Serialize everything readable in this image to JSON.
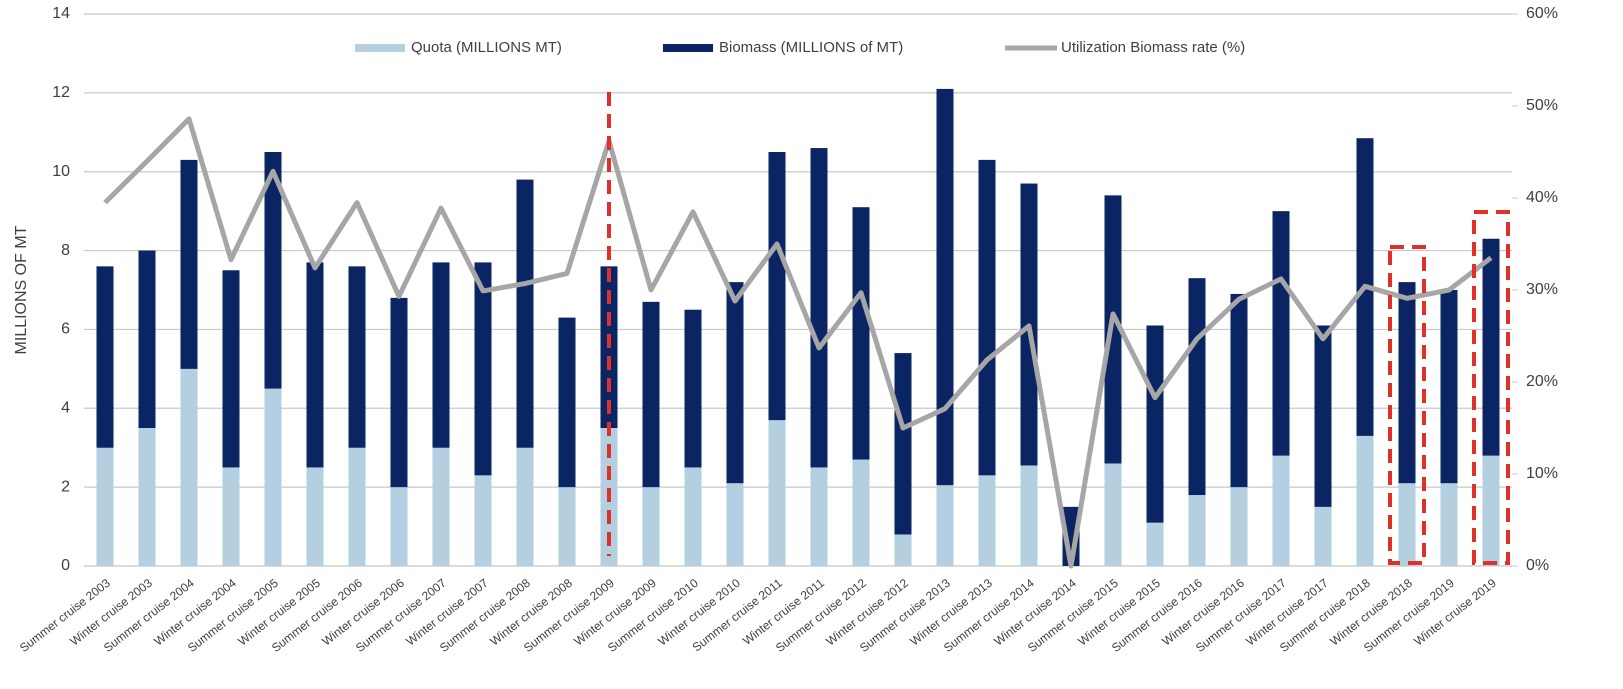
{
  "chart_data": {
    "type": "bar",
    "y_label": "MILLIONS OF MT",
    "categories": [
      "Summer cruise 2003",
      "Winter cruise 2003",
      "Summer cruise 2004",
      "Winter cruise 2004",
      "Summer cruise 2005",
      "Winter cruise 2005",
      "Summer cruise 2006",
      "Winter cruise 2006",
      "Summer cruise 2007",
      "Winter cruise 2007",
      "Summer cruise 2008",
      "Winter cruise 2008",
      "Summer cruise 2009",
      "Winter cruise 2009",
      "Summer cruise 2010",
      "Winter cruise 2010",
      "Summer cruise 2011",
      "Winter cruise 2011",
      "Summer cruise 2012",
      "Winter cruise 2012",
      "Summer cruise 2013",
      "Winter cruise 2013",
      "Summer cruise 2014",
      "Winter cruise 2014",
      "Summer cruise 2015",
      "Winter cruise 2015",
      "Summer cruise 2016",
      "Winter cruise 2016",
      "Summer cruise 2017",
      "Winter cruise 2017",
      "Summer cruise 2018",
      "Winter cruise 2018",
      "Summer cruise 2019",
      "Winter cruise 2019"
    ],
    "series": [
      {
        "name": "Quota (MILLIONS MT)",
        "color": "#b4cfe0",
        "values": [
          3,
          3.5,
          5,
          2.5,
          4.5,
          2.5,
          3,
          2,
          3,
          2.3,
          3,
          2,
          3.5,
          2,
          2.5,
          2.1,
          3.7,
          2.5,
          2.7,
          0.8,
          2.05,
          2.3,
          2.55,
          0,
          2.6,
          1.1,
          1.8,
          2,
          2.8,
          1.5,
          3.3,
          2.1,
          2.1,
          2.8
        ]
      },
      {
        "name": "Biomass (MILLIONS of MT)",
        "color": "#0b2463",
        "values": [
          7.6,
          8.0,
          10.3,
          7.5,
          10.5,
          7.7,
          7.6,
          6.8,
          7.7,
          7.7,
          9.8,
          6.3,
          7.6,
          6.7,
          6.5,
          7.2,
          10.5,
          10.6,
          9.1,
          5.4,
          12.1,
          10.3,
          9.7,
          1.5,
          9.4,
          6.1,
          7.3,
          6.9,
          9.0,
          6.1,
          10.85,
          7.2,
          7.0,
          8.3
        ]
      },
      {
        "name": "Utilization Biomass rate (%)",
        "color": "#a6a6a6",
        "type": "line",
        "axis": "y2",
        "values": [
          39.5,
          44,
          48.6,
          33.3,
          42.9,
          32.4,
          39.5,
          29.3,
          38.9,
          29.9,
          30.7,
          31.8,
          46.2,
          30,
          38.5,
          28.8,
          35,
          23.7,
          29.7,
          15,
          17.1,
          22.4,
          26.1,
          0,
          27.4,
          18.3,
          24.7,
          29,
          31.2,
          24.7,
          30.4,
          29.1,
          30,
          33.5
        ]
      }
    ],
    "ylim": [
      0,
      14
    ],
    "yticks": [
      0,
      2,
      4,
      6,
      8,
      10,
      12,
      14
    ],
    "y2lim": [
      0,
      60
    ],
    "y2ticks": [
      {
        "value": 0,
        "label": "0%"
      },
      {
        "value": 10,
        "label": "10%"
      },
      {
        "value": 20,
        "label": "20%"
      },
      {
        "value": 30,
        "label": "30%"
      },
      {
        "value": 40,
        "label": "40%"
      },
      {
        "value": 50,
        "label": "50%"
      },
      {
        "value": 60,
        "label": "60%"
      }
    ],
    "grid": true,
    "legend": "top"
  }
}
